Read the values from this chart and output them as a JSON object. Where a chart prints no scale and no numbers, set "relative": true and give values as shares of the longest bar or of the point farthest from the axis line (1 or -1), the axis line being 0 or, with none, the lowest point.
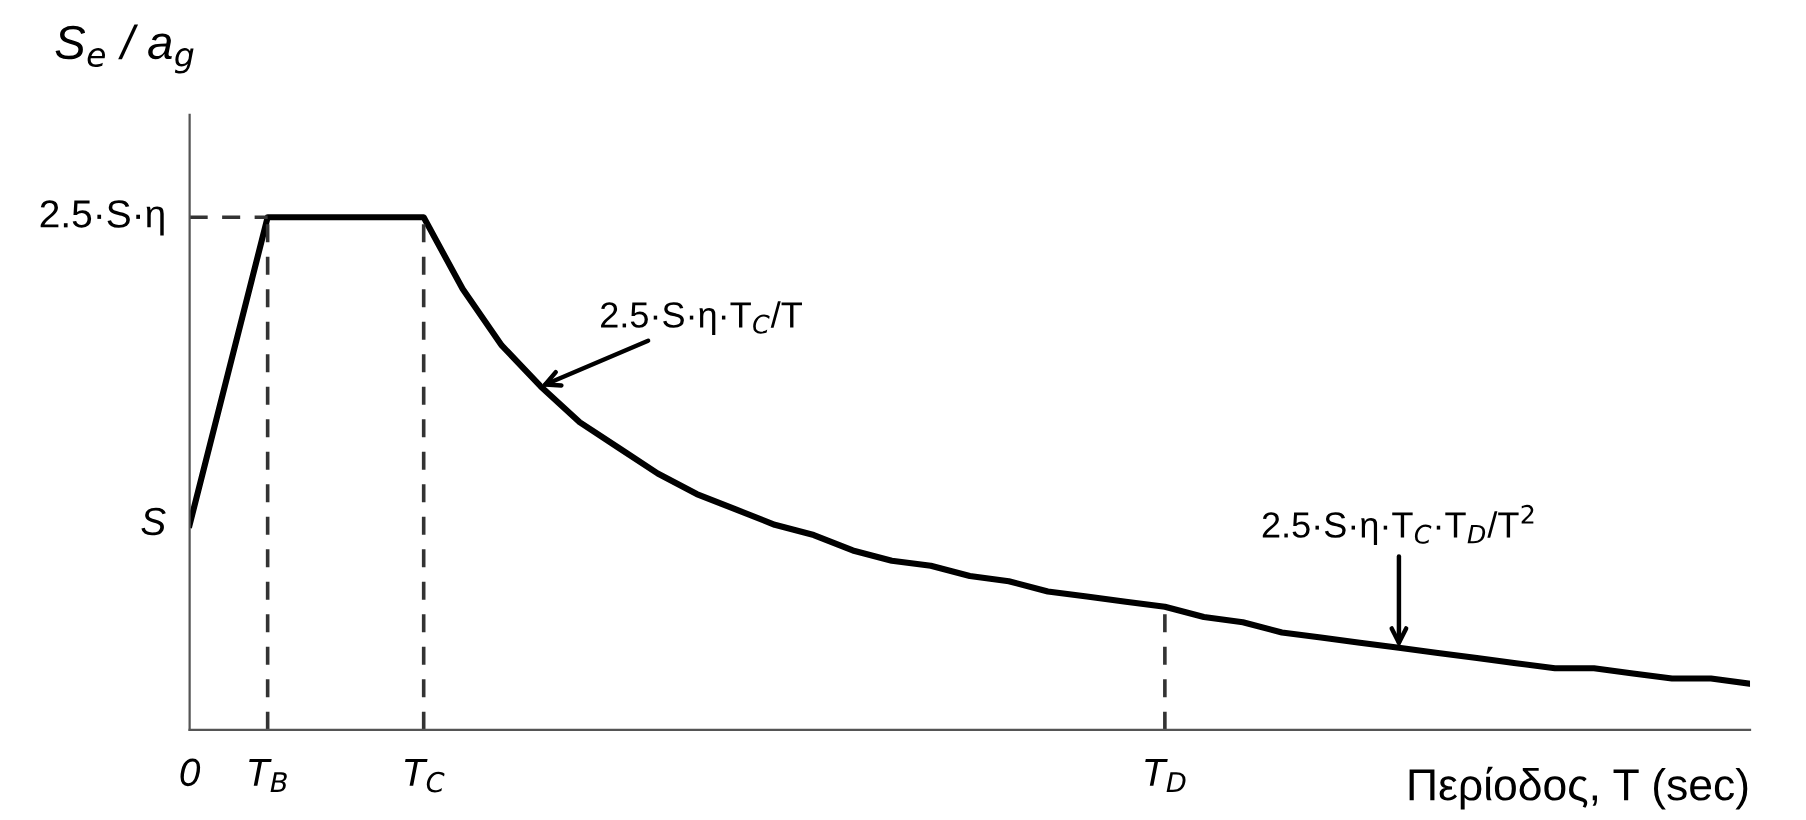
{
  "chart_data": {
    "type": "line",
    "relative": true,
    "ylabel": "S$_{e}$ / a$_{g}$",
    "xlabel": "Περίοδος, T (sec)",
    "categories": [
      "0",
      null,
      "T$_{B}$",
      null,
      null,
      null,
      "T$_{C}$",
      null,
      null,
      null,
      null,
      null,
      null,
      null,
      null,
      null,
      null,
      null,
      null,
      null,
      null,
      null,
      null,
      null,
      null,
      "T$_{D}$",
      null,
      null,
      null,
      null,
      null,
      null,
      null,
      null,
      null,
      null,
      null,
      null,
      null,
      null,
      null
    ],
    "values": [
      0.4,
      0.7,
      1,
      1,
      1,
      1,
      1,
      0.86,
      0.75,
      0.67,
      0.6,
      0.55,
      0.5,
      0.46,
      0.43,
      0.4,
      0.38,
      0.35,
      0.33,
      0.32,
      0.3,
      0.29,
      0.27,
      0.26,
      0.25,
      0.24,
      0.22,
      0.21,
      0.19,
      0.18,
      0.17,
      0.16,
      0.15,
      0.14,
      0.13,
      0.12,
      0.12,
      0.11,
      0.1,
      0.1,
      0.09
    ],
    "color": "#000000",
    "line_style": "solid",
    "marker": "none",
    "grid": false,
    "ref_lines": [
      {
        "axis": "y",
        "value": 1,
        "label": "2.5·S·η",
        "line_style": "dashed"
      },
      {
        "axis": "x",
        "value": "T$_{B}$",
        "line_style": "dashed"
      },
      {
        "axis": "x",
        "value": "T$_{C}$",
        "line_style": "dashed"
      },
      {
        "axis": "x",
        "value": "T$_{D}$",
        "line_style": "dashed"
      }
    ],
    "annotations": [
      {
        "text": "S",
        "x": "0",
        "y": 0.4
      },
      "2.5·S·η·T$_{C}$/T",
      "2.5·S·η·T$_{C}$·T$_{D}$/T$^{2}$"
    ]
  }
}
